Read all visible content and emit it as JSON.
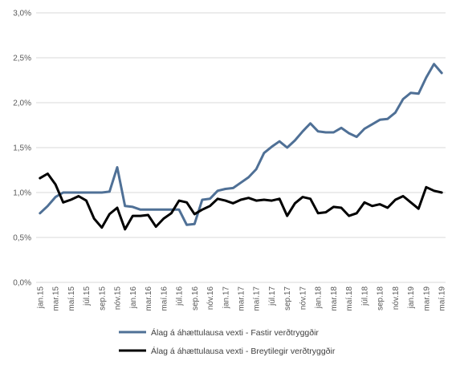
{
  "chart_data": {
    "type": "line",
    "ylim": [
      0,
      3.0
    ],
    "yticks": [
      0,
      0.5,
      1.0,
      1.5,
      2.0,
      2.5,
      3.0
    ],
    "ytick_labels": [
      "0,0%",
      "0,5%",
      "1,0%",
      "1,5%",
      "2,0%",
      "2,5%",
      "3,0%"
    ],
    "grid": true,
    "legend_position": "bottom",
    "x": [
      "jan.15",
      "feb.15",
      "mar.15",
      "apr.15",
      "maí.15",
      "jún.15",
      "júl.15",
      "ágú.15",
      "sep.15",
      "okt.15",
      "nóv.15",
      "des.15",
      "jan.16",
      "feb.16",
      "mar.16",
      "apr.16",
      "maí.16",
      "jún.16",
      "júl.16",
      "ágú.16",
      "sep.16",
      "okt.16",
      "nóv.16",
      "des.16",
      "jan.17",
      "feb.17",
      "mar.17",
      "apr.17",
      "maí.17",
      "jún.17",
      "júl.17",
      "ágú.17",
      "sep.17",
      "okt.17",
      "nóv.17",
      "des.17",
      "jan.18",
      "feb.18",
      "mar.18",
      "apr.18",
      "maí.18",
      "jún.18",
      "júl.18",
      "ágú.18",
      "sep.18",
      "okt.18",
      "nóv.18",
      "des.18",
      "jan.19",
      "feb.19",
      "mar.19",
      "apr.19",
      "maí.19"
    ],
    "x_tick_labels": [
      "jan.15",
      "mar.15",
      "maí.15",
      "júl.15",
      "sep.15",
      "nóv.15",
      "jan.16",
      "mar.16",
      "maí.16",
      "júl.16",
      "sep.16",
      "nóv.16",
      "jan.17",
      "mar.17",
      "maí.17",
      "júl.17",
      "sep.17",
      "nóv.17",
      "jan.18",
      "mar.18",
      "maí.18",
      "júl.18",
      "sep.18",
      "nóv.18",
      "jan.19",
      "mar.19",
      "maí.19"
    ],
    "series": [
      {
        "name": "Álag á áhættulausa vexti - Fastir verðtryggðir",
        "color": "#4f7096",
        "values": [
          0.77,
          0.85,
          0.95,
          1.0,
          1.0,
          1.0,
          1.0,
          1.0,
          1.0,
          1.01,
          1.28,
          0.85,
          0.84,
          0.81,
          0.81,
          0.81,
          0.81,
          0.81,
          0.81,
          0.64,
          0.65,
          0.92,
          0.93,
          1.02,
          1.04,
          1.05,
          1.11,
          1.17,
          1.26,
          1.44,
          1.51,
          1.57,
          1.5,
          1.58,
          1.68,
          1.77,
          1.68,
          1.67,
          1.67,
          1.72,
          1.66,
          1.62,
          1.71,
          1.76,
          1.81,
          1.82,
          1.89,
          2.04,
          2.11,
          2.1,
          2.28,
          2.43,
          2.33
        ]
      },
      {
        "name": "Álag á áhættulausa vexti - Breytilegir verðtryggðir",
        "color": "#000000",
        "values": [
          1.16,
          1.21,
          1.09,
          0.89,
          0.92,
          0.96,
          0.91,
          0.71,
          0.61,
          0.76,
          0.83,
          0.59,
          0.74,
          0.74,
          0.75,
          0.62,
          0.71,
          0.77,
          0.91,
          0.89,
          0.76,
          0.81,
          0.85,
          0.93,
          0.91,
          0.88,
          0.92,
          0.94,
          0.91,
          0.92,
          0.91,
          0.93,
          0.74,
          0.88,
          0.95,
          0.93,
          0.77,
          0.78,
          0.84,
          0.83,
          0.74,
          0.77,
          0.89,
          0.85,
          0.87,
          0.83,
          0.92,
          0.96,
          0.89,
          0.82,
          1.06,
          1.02,
          1.0
        ]
      }
    ]
  }
}
